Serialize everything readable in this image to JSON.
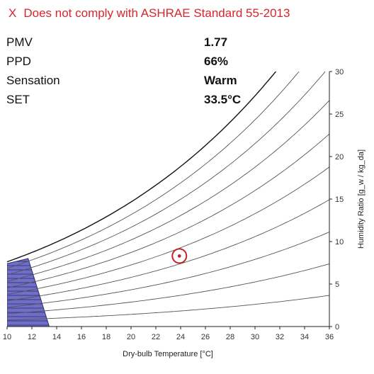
{
  "status": {
    "icon": "x-mark-icon",
    "mark": "X",
    "text": "Does not comply with ASHRAE Standard 55-2013",
    "color": "#d7262b"
  },
  "metrics": [
    {
      "label": "PMV",
      "value": "1.77"
    },
    {
      "label": "PPD",
      "value": "66%"
    },
    {
      "label": "Sensation",
      "value": "Warm"
    },
    {
      "label": "SET",
      "value": "33.5°C"
    }
  ],
  "chart_data": {
    "type": "scatter",
    "title": "",
    "xlabel": "Dry-bulb Temperature [°C]",
    "ylabel": "Humidity Ratio [g_w / kg_da]",
    "xlim": [
      10,
      36
    ],
    "ylim": [
      0,
      30
    ],
    "xticks": [
      10,
      12,
      14,
      16,
      18,
      20,
      22,
      24,
      26,
      28,
      30,
      32,
      34,
      36
    ],
    "yticks": [
      0,
      5,
      10,
      15,
      20,
      25,
      30
    ],
    "y_axis_side": "right",
    "rh_curves": [
      10,
      20,
      30,
      40,
      50,
      60,
      70,
      80,
      90,
      100
    ],
    "comfort_zone": {
      "color": "#6f6fc8",
      "polygon": [
        [
          10,
          0
        ],
        [
          13.4,
          0
        ],
        [
          11.7,
          8.0
        ],
        [
          10,
          7.4
        ]
      ]
    },
    "point": {
      "x": 23.9,
      "y": 8.3,
      "color": "#c0242a"
    }
  }
}
